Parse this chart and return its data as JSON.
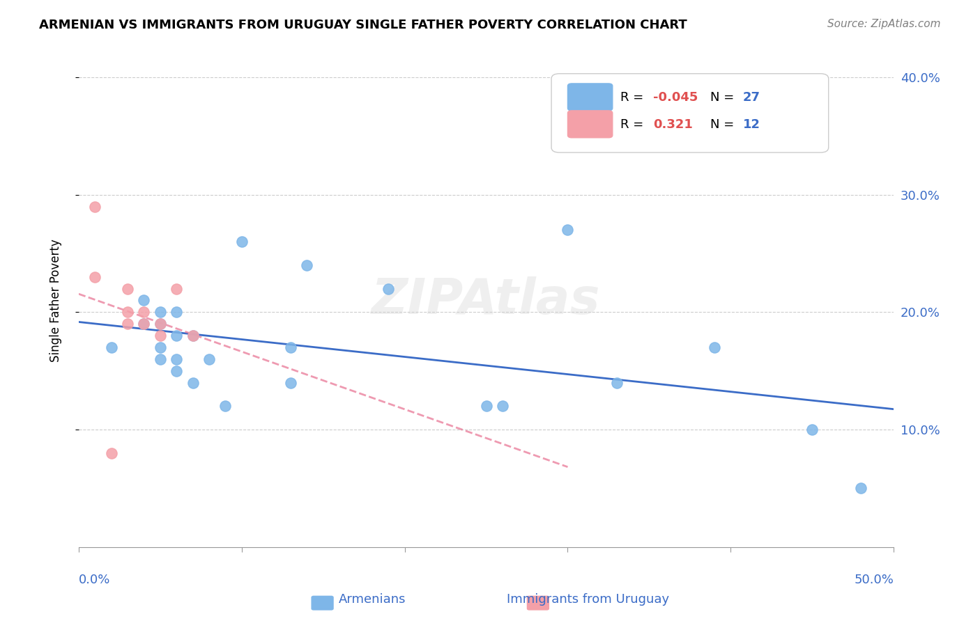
{
  "title": "ARMENIAN VS IMMIGRANTS FROM URUGUAY SINGLE FATHER POVERTY CORRELATION CHART",
  "source": "Source: ZipAtlas.com",
  "ylabel": "Single Father Poverty",
  "xlim": [
    0.0,
    0.5
  ],
  "ylim": [
    0.0,
    0.42
  ],
  "yticks": [
    0.1,
    0.2,
    0.3,
    0.4
  ],
  "ytick_labels": [
    "10.0%",
    "20.0%",
    "30.0%",
    "40.0%"
  ],
  "xticks": [
    0.0,
    0.1,
    0.2,
    0.3,
    0.4,
    0.5
  ],
  "legend_r_armenian": "-0.045",
  "legend_n_armenian": "27",
  "legend_r_uruguay": "0.321",
  "legend_n_uruguay": "12",
  "armenian_color": "#7EB6E8",
  "uruguay_color": "#F4A0A8",
  "trend_armenian_color": "#3B6CC7",
  "trend_uruguay_color": "#E87090",
  "armenian_x": [
    0.02,
    0.04,
    0.04,
    0.05,
    0.05,
    0.05,
    0.05,
    0.06,
    0.06,
    0.06,
    0.06,
    0.07,
    0.07,
    0.08,
    0.09,
    0.1,
    0.13,
    0.13,
    0.14,
    0.19,
    0.25,
    0.26,
    0.3,
    0.33,
    0.39,
    0.45,
    0.48
  ],
  "armenian_y": [
    0.17,
    0.19,
    0.21,
    0.16,
    0.17,
    0.19,
    0.2,
    0.15,
    0.16,
    0.18,
    0.2,
    0.14,
    0.18,
    0.16,
    0.12,
    0.26,
    0.14,
    0.17,
    0.24,
    0.22,
    0.12,
    0.12,
    0.27,
    0.14,
    0.17,
    0.1,
    0.05
  ],
  "uruguay_x": [
    0.01,
    0.01,
    0.02,
    0.03,
    0.03,
    0.03,
    0.04,
    0.04,
    0.05,
    0.05,
    0.06,
    0.07
  ],
  "uruguay_y": [
    0.29,
    0.23,
    0.08,
    0.22,
    0.2,
    0.19,
    0.2,
    0.19,
    0.19,
    0.18,
    0.22,
    0.18
  ]
}
